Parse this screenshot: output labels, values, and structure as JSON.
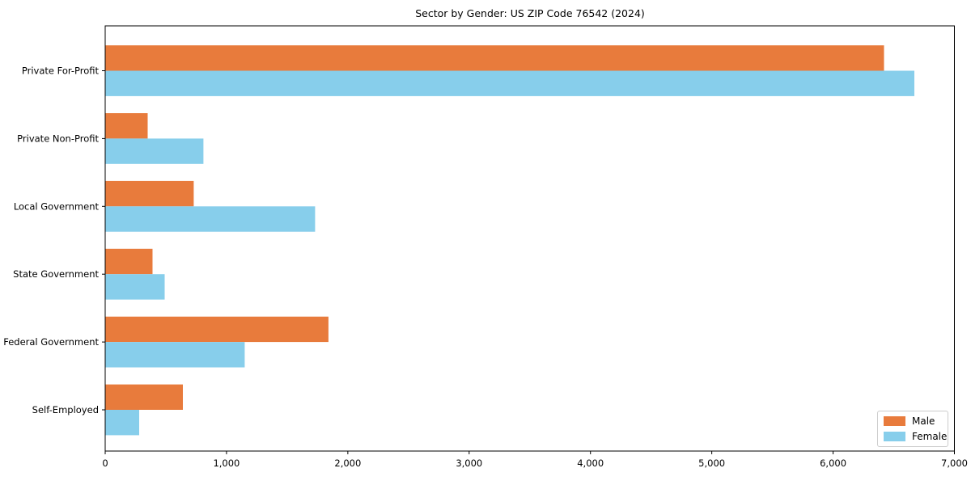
{
  "title": "Sector by Gender: US ZIP Code 76542 (2024)",
  "chart_data": {
    "type": "bar",
    "orientation": "horizontal",
    "title": "Sector by Gender: US ZIP Code 76542 (2024)",
    "categories": [
      "Private For-Profit",
      "Private Non-Profit",
      "Local Government",
      "State Government",
      "Federal Government",
      "Self-Employed"
    ],
    "series": [
      {
        "name": "Male",
        "color": "#e87b3c",
        "values": [
          6420,
          350,
          730,
          390,
          1840,
          640
        ]
      },
      {
        "name": "Female",
        "color": "#87ceeb",
        "values": [
          6670,
          810,
          1730,
          490,
          1150,
          280
        ]
      }
    ],
    "xlabel": "",
    "ylabel": "",
    "xlim": [
      0,
      7000
    ],
    "x_ticks": [
      0,
      1000,
      2000,
      3000,
      4000,
      5000,
      6000,
      7000
    ],
    "x_tick_labels": [
      "0",
      "1,000",
      "2,000",
      "3,000",
      "4,000",
      "5,000",
      "6,000",
      "7,000"
    ],
    "grid": false,
    "legend_position": "lower right",
    "axis_color": "#000000",
    "tick_label_color": "#000000",
    "background_color": "#ffffff"
  },
  "legend": {
    "male_label": "Male",
    "female_label": "Female"
  }
}
